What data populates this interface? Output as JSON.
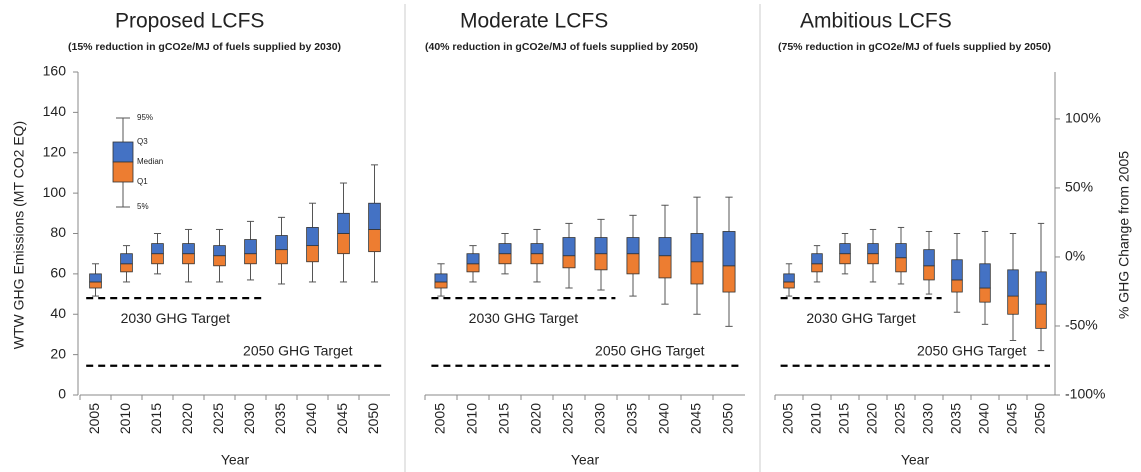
{
  "chart_data": [
    {
      "type": "box",
      "title": "Proposed LCFS",
      "subtitle": "(15% reduction in gCO2e/MJ of fuels supplied by 2030)",
      "ylabel": "WTW GHG Emissions (MT CO2 EQ)",
      "xlabel": "Year",
      "categories": [
        "2005",
        "2010",
        "2015",
        "2020",
        "2025",
        "2030",
        "2035",
        "2040",
        "2045",
        "2050"
      ],
      "low": [
        49,
        56,
        60,
        56,
        56,
        57,
        55,
        56,
        56,
        56
      ],
      "q1": [
        53,
        61,
        65,
        65,
        64,
        65,
        65,
        66,
        70,
        71
      ],
      "median": [
        56,
        65,
        70,
        70,
        69,
        70,
        72,
        74,
        80,
        82
      ],
      "q3": [
        60,
        70,
        75,
        75,
        74,
        77,
        79,
        83,
        90,
        95
      ],
      "high": [
        65,
        74,
        80,
        82,
        82,
        86,
        88,
        95,
        105,
        114
      ],
      "colors": {
        "upper": "#4472c4",
        "lower": "#ed7d31"
      },
      "ylim": [
        0,
        160
      ],
      "yticks": [
        0,
        20,
        40,
        60,
        80,
        100,
        120,
        140,
        160
      ],
      "grid": false,
      "legend": {
        "high": "95%",
        "q3": "Q3",
        "median": "Median",
        "q1": "Q1",
        "low": "5%"
      },
      "targets": [
        {
          "label": "2030 GHG Target",
          "value": 48,
          "through": "2030"
        },
        {
          "label": "2050 GHG Target",
          "value": 14.5,
          "through": "2050"
        }
      ]
    },
    {
      "type": "box",
      "title": "Moderate LCFS",
      "subtitle": "(40% reduction in gCO2e/MJ of fuels supplied by 2050)",
      "xlabel": "Year",
      "categories": [
        "2005",
        "2010",
        "2015",
        "2020",
        "2025",
        "2030",
        "2035",
        "2040",
        "2045",
        "2050"
      ],
      "low": [
        49,
        56,
        60,
        56,
        53,
        52,
        49,
        45,
        40,
        34
      ],
      "q1": [
        53,
        61,
        65,
        65,
        63,
        62,
        60,
        58,
        55,
        51
      ],
      "median": [
        56,
        65,
        70,
        70,
        69,
        70,
        70,
        69,
        66,
        64
      ],
      "q3": [
        60,
        70,
        75,
        75,
        78,
        78,
        78,
        78,
        80,
        81
      ],
      "high": [
        65,
        74,
        80,
        82,
        85,
        87,
        89,
        94,
        98,
        98
      ],
      "colors": {
        "upper": "#4472c4",
        "lower": "#ed7d31"
      },
      "ylim": [
        0,
        160
      ],
      "grid": false,
      "targets": [
        {
          "label": "2030 GHG Target",
          "value": 48,
          "through": "2030"
        },
        {
          "label": "2050 GHG Target",
          "value": 14.5,
          "through": "2050"
        }
      ]
    },
    {
      "type": "box",
      "title": "Ambitious LCFS",
      "subtitle": "(75% reduction in gCO2e/MJ of fuels supplied by 2050)",
      "xlabel": "Year",
      "y2label": "% GHG Change from 2005",
      "categories": [
        "2005",
        "2010",
        "2015",
        "2020",
        "2025",
        "2030",
        "2035",
        "2040",
        "2045",
        "2050"
      ],
      "low": [
        49,
        56,
        60,
        56,
        55,
        50,
        41,
        35,
        27,
        22
      ],
      "q1": [
        53,
        61,
        65,
        65,
        61,
        57,
        51,
        46,
        40,
        33
      ],
      "median": [
        56,
        65,
        70,
        70,
        68,
        64,
        57,
        53,
        49,
        45
      ],
      "q3": [
        60,
        70,
        75,
        75,
        75,
        72,
        67,
        65,
        62,
        61
      ],
      "high": [
        65,
        74,
        80,
        82,
        83,
        81,
        80,
        81,
        80,
        85
      ],
      "colors": {
        "upper": "#4472c4",
        "lower": "#ed7d31"
      },
      "ylim": [
        0,
        160
      ],
      "y2lim": [
        -100,
        134
      ],
      "y2ticks": [
        {
          "value": -100,
          "label": "-100%"
        },
        {
          "value": -50,
          "label": "-50%"
        },
        {
          "value": 0,
          "label": "0%"
        },
        {
          "value": 50,
          "label": "50%"
        },
        {
          "value": 100,
          "label": "100%"
        }
      ],
      "grid": false,
      "targets": [
        {
          "label": "2030 GHG Target",
          "value": 48,
          "through": "2030"
        },
        {
          "label": "2050 GHG Target",
          "value": 14.5,
          "through": "2050"
        }
      ]
    }
  ]
}
